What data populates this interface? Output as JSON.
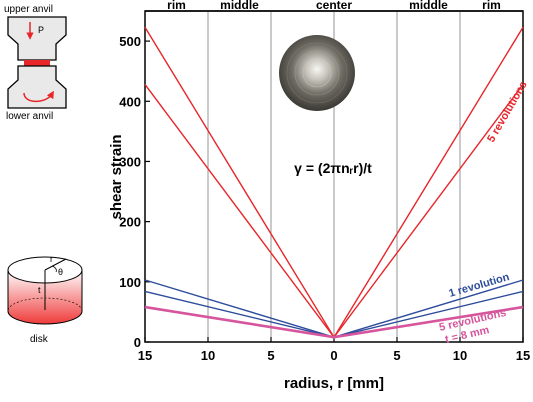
{
  "chart_data": {
    "type": "line",
    "xlabel": "radius, r [mm]",
    "ylabel": "shear strain",
    "x_ticks": [
      "15",
      "10",
      "5",
      "0",
      "5",
      "10",
      "15"
    ],
    "x_tick_values": [
      -15,
      -10,
      -5,
      0,
      5,
      10,
      15
    ],
    "xlim": [
      -15,
      15
    ],
    "y_ticks": [
      0,
      100,
      200,
      300,
      400,
      500
    ],
    "ylim": [
      0,
      550
    ],
    "regions": [
      "rim",
      "middle",
      "center",
      "middle",
      "rim"
    ],
    "region_boundaries": [
      -10,
      -5,
      5,
      10
    ],
    "formula": "γ = (2πnᵣr)/t",
    "series": [
      {
        "group": "5 revolutions",
        "color": "#e8262a",
        "x": [
          -15,
          0,
          15
        ],
        "y": [
          523,
          8,
          523
        ]
      },
      {
        "group": "5 revolutions",
        "color": "#e8262a",
        "x": [
          -15,
          0,
          15
        ],
        "y": [
          428,
          8,
          428
        ]
      },
      {
        "group": "1 revolution",
        "color": "#2e4c9c",
        "x": [
          -15,
          0,
          15
        ],
        "y": [
          103,
          8,
          103
        ]
      },
      {
        "group": "1 revolution",
        "color": "#2e4c9c",
        "x": [
          -15,
          0,
          15
        ],
        "y": [
          84,
          8,
          84
        ]
      },
      {
        "group": "5 revolutions, t = 8 mm",
        "color": "#d6559d",
        "x": [
          -15,
          0,
          15
        ],
        "y": [
          58,
          8,
          58
        ]
      }
    ],
    "annotations": {
      "red": "5 revolutions",
      "blue": "1 revolution",
      "pink_1": "5 revolutions",
      "pink_2": "t = 8 mm"
    }
  },
  "schematic": {
    "upper_anvil_label": "upper anvil",
    "pressure_label": "P",
    "lower_anvil_label": "lower anvil",
    "disk_label": "disk",
    "radius_label": "r",
    "theta_label": "θ",
    "thickness_label": "t"
  },
  "colors": {
    "red": "#e8262a",
    "blue": "#2e4c9c",
    "pink": "#d6559d",
    "grid": "#7a7a7a"
  }
}
